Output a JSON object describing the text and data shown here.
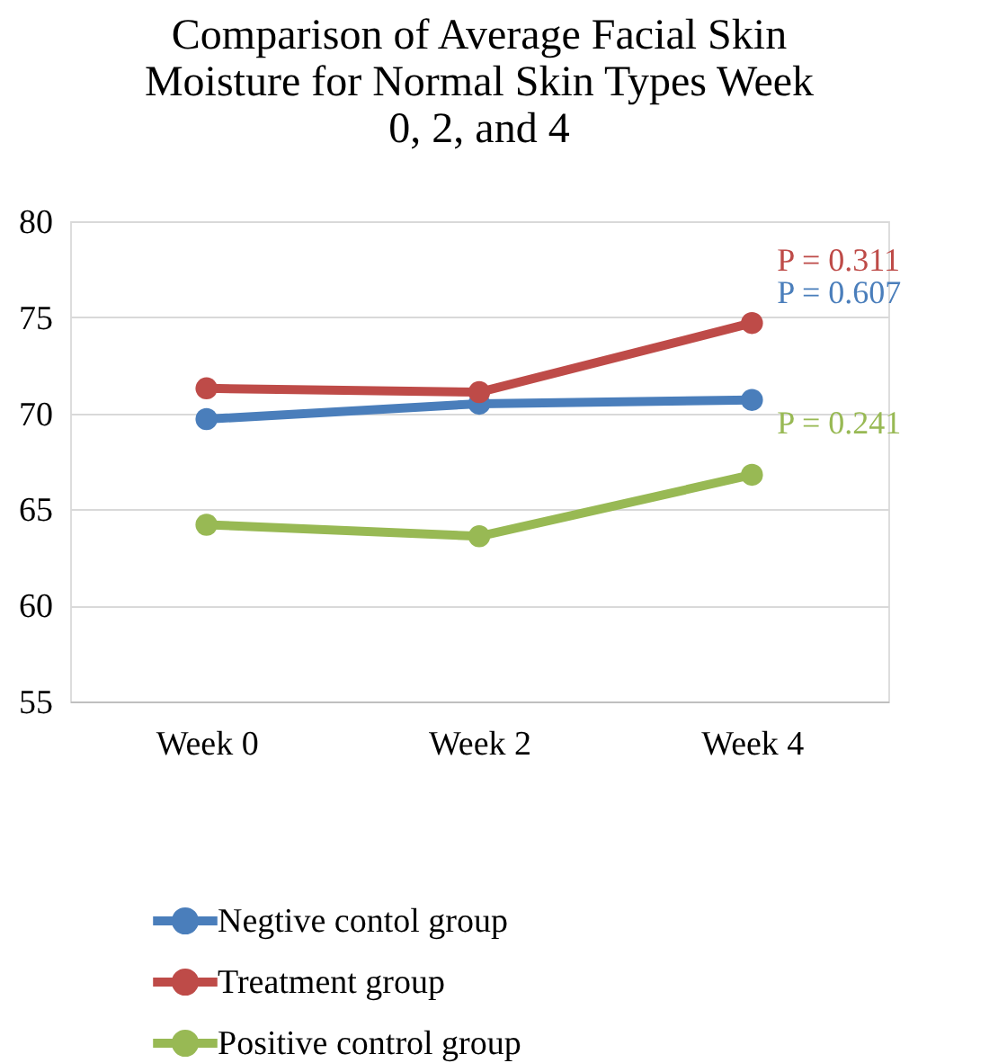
{
  "chart_data": {
    "type": "line",
    "title": "Comparison of Average Facial Skin Moisture for Normal Skin Types Week 0, 2, and 4",
    "categories": [
      "Week 0",
      "Week 2",
      "Week 4"
    ],
    "series": [
      {
        "name": "Negtive contol group",
        "color": "#4a7ebb",
        "values": [
          69.7,
          70.5,
          70.7
        ]
      },
      {
        "name": "Treatment group",
        "color": "#be4b48",
        "values": [
          71.3,
          71.1,
          74.7
        ]
      },
      {
        "name": "Positive control group",
        "color": "#98b954",
        "values": [
          64.2,
          63.6,
          66.8
        ]
      }
    ],
    "ylim": [
      55,
      80
    ],
    "yticks": [
      55,
      60,
      65,
      70,
      75,
      80
    ],
    "grid": "y",
    "legend": "bottom",
    "marker": "circle",
    "line_style": "solid",
    "annotations": [
      "P = 0.607",
      "P = 0.311",
      "P = 0.241"
    ]
  }
}
